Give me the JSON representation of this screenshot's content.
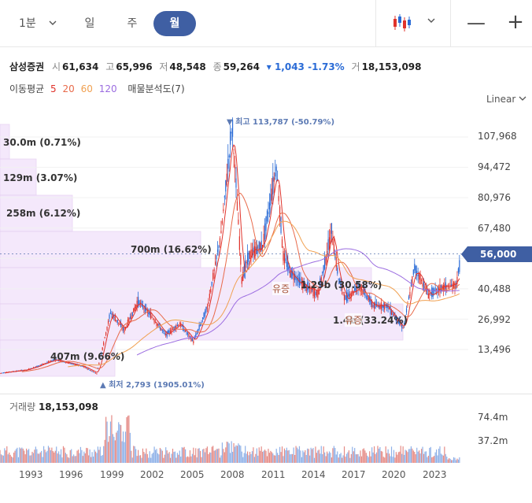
{
  "toolbar": {
    "timeframes": {
      "minute": "1분",
      "day": "일",
      "week": "주",
      "month": "월"
    },
    "active_timeframe": "월",
    "zoom_out": "—",
    "zoom_in": "+"
  },
  "stock": {
    "name": "삼성증권",
    "open_label": "시",
    "open": "61,634",
    "high_label": "고",
    "high": "65,996",
    "low_label": "저",
    "low": "48,548",
    "close_label": "종",
    "close": "59,264",
    "change": "▾ 1,043 -1.73%",
    "volume_label": "거",
    "volume": "18,153,098"
  },
  "indicators": {
    "ma_label": "이동평균",
    "ma_periods": [
      "5",
      "20",
      "60",
      "120"
    ],
    "volume_profile_label": "매물분석도(7)"
  },
  "scale": {
    "label": "Linear",
    "chevron": "⌄"
  },
  "price_axis": [
    "107,968",
    "94,472",
    "80,976",
    "67,480",
    "40,488",
    "26,992",
    "13,496"
  ],
  "current_price": "56,000",
  "high_marker": "▼ 최고 113,787 (-50.79%)",
  "low_marker": "▲ 최저 2,793 (1905.01%)",
  "volume_profile": [
    {
      "label": "30.0m (0.71%)"
    },
    {
      "label": "129m (3.07%)"
    },
    {
      "label": "258m (6.12%)"
    },
    {
      "label": "700m (16.62%)"
    },
    {
      "label": "1.29b (30.58%)"
    },
    {
      "label": "1.4b (33.24%)"
    },
    {
      "label": "407m (9.66%)"
    }
  ],
  "events": [
    "유증",
    "유증"
  ],
  "volume_panel": {
    "label": "거래량",
    "value": "18,153,098",
    "axis": [
      "74.4m",
      "37.2m"
    ]
  },
  "x_axis": [
    "1993",
    "1996",
    "1999",
    "2002",
    "2005",
    "2008",
    "2011",
    "2014",
    "2017",
    "2020",
    "2023"
  ],
  "colors": {
    "accent": "#3f5fa3",
    "up": "#e0332b",
    "down": "#2a6bd6",
    "profile": "#f3e4fb"
  },
  "chart_data": {
    "type": "line",
    "title": "",
    "xlabel": "",
    "ylabel": "",
    "x": [
      1991,
      1993,
      1995,
      1997,
      1998,
      1999,
      2000,
      2001,
      2002,
      2003,
      2004,
      2005,
      2006,
      2007,
      2007.8,
      2008.5,
      2009,
      2010,
      2011,
      2011.5,
      2012,
      2013,
      2014,
      2015,
      2015.5,
      2016,
      2017,
      2018,
      2019,
      2020.2,
      2021,
      2022,
      2023,
      2024,
      2024.5
    ],
    "series": [
      {
        "name": "price",
        "values": [
          3000,
          4500,
          9000,
          6000,
          2793,
          30000,
          22000,
          35000,
          28000,
          20000,
          25000,
          17000,
          32000,
          65000,
          113787,
          45000,
          55000,
          60000,
          95000,
          55000,
          48000,
          42000,
          38000,
          66000,
          45000,
          36000,
          42000,
          33000,
          33000,
          23000,
          50000,
          38000,
          41000,
          42000,
          59264
        ]
      }
    ],
    "ylim": [
      0,
      120000
    ],
    "current_price": 56000,
    "volume_profile_pct": [
      0.71,
      3.07,
      6.12,
      16.62,
      30.58,
      33.24,
      9.66
    ]
  }
}
